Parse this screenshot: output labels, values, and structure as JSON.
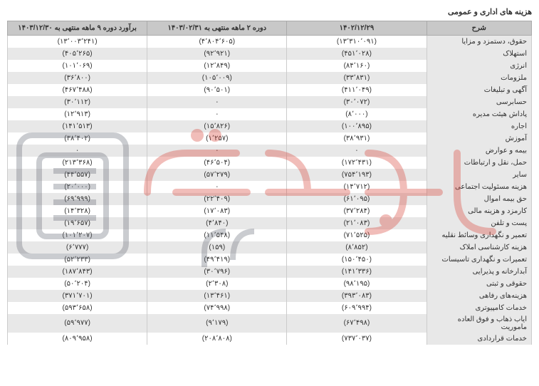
{
  "title": "هزینه های اداری و عمومی",
  "headers": {
    "desc": "شرح",
    "col1": "۱۴۰۲/۱۲/۲۹",
    "col2": "دوره ۲ ماهه منتهی به ۱۴۰۳/۰۲/۳۱",
    "col3": "برآورد دوره ۹ ماهه منتهی به ۱۴۰۳/۱۲/۳۰"
  },
  "rows": [
    {
      "d": "حقوق، دستمزد و مزایا",
      "v1": "(۱۳٬۳۱۰٬۰۹۱)",
      "v2": "(۴٬۸۰۴٬۶۰۵)",
      "v3": "(۱۳٬۰۰۳٬۲۴۱)"
    },
    {
      "d": "استهلاک",
      "v1": "(۴۵۱٬۰۲۸)",
      "v2": "(۹۲٬۹۲۱)",
      "v3": "(۴۰۵٬۲۶۵)"
    },
    {
      "d": "انرژی",
      "v1": "(۸۴٬۱۶۰)",
      "v2": "(۱۲٬۸۴۹)",
      "v3": "(۱۰۱٬۰۶۹)"
    },
    {
      "d": "ملزومات",
      "v1": "(۳۳٬۸۳۱)",
      "v2": "(۱۰۵٬۰۰۹)",
      "v3": "(۳۶٬۸۰۰)"
    },
    {
      "d": "آگهی و تبلیغات",
      "v1": "(۴۱۱٬۰۴۹)",
      "v2": "(۹۰٬۵۰۱)",
      "v3": "(۴۶۷٬۴۸۸)"
    },
    {
      "d": "حسابرسی",
      "v1": "(۳۰٬۰۷۲)",
      "v2": "۰",
      "v3": "(۳۰٬۱۱۲)"
    },
    {
      "d": "پاداش هیئت مدیره",
      "v1": "(۸٬۰۰۰)",
      "v2": "۰",
      "v3": "(۱۲٬۹۱۳)"
    },
    {
      "d": "اجاره",
      "v1": "(۱۰۰٬۸۹۵)",
      "v2": "(۱۵٬۸۲۶)",
      "v3": "(۱۴۱٬۵۱۳)"
    },
    {
      "d": "آموزش",
      "v1": "(۳۸٬۹۳۱)",
      "v2": "(۱٬۲۵۷)",
      "v3": "(۳۸٬۴۰۲)"
    },
    {
      "d": "بیمه و عوارض",
      "v1": "۰",
      "v2": "۰",
      "v3": "۰"
    },
    {
      "d": "حمل، نقل و ارتباطات",
      "v1": "(۱۷۲٬۴۳۱)",
      "v2": "(۴۶٬۵۰۴)",
      "v3": "(۲۱۳٬۳۶۸)"
    },
    {
      "d": "سایر",
      "v1": "(۷۵۴٬۱۹۳)",
      "v2": "(۵۷٬۲۷۹)",
      "v3": "(۴۴٬۵۵۷)"
    },
    {
      "d": "هزینه مسئولیت اجتماعی",
      "v1": "(۱۴٬۷۱۲)",
      "v2": "۰",
      "v3": "(۲۰٬۰۰۰)"
    },
    {
      "d": "حق بیمه اموال",
      "v1": "(۶۱٬۰۹۵)",
      "v2": "(۲۲٬۴۰۹)",
      "v3": "(۶۹٬۹۹۹)"
    },
    {
      "d": "کارمزد و هزینه مالی",
      "v1": "(۳۷٬۲۸۴)",
      "v2": "(۱۷٬۰۸۳)",
      "v3": "(۱۴٬۳۲۸)"
    },
    {
      "d": "پست و تلفن",
      "v1": "(۲۱٬۰۸۳)",
      "v2": "(۴٬۸۴۰)",
      "v3": "(۱۹٬۶۵۷)"
    },
    {
      "d": "تعمیر و نگهداری وسائط نقلیه",
      "v1": "(۷۱٬۵۲۵)",
      "v2": "(۱۱٬۵۴۸)",
      "v3": "(۱۰۱٬۲۰۷)"
    },
    {
      "d": "هزینه کارشناسی املاک",
      "v1": "(۸٬۸۵۲)",
      "v2": "(۱۵۹)",
      "v3": "(۶٬۷۷۷)"
    },
    {
      "d": "تعمیرات و نگهداری تاسیسات",
      "v1": "(۱۵۰٬۴۵۰)",
      "v2": "(۴۹٬۴۱۹)",
      "v3": "(۵۲٬۲۳۳)"
    },
    {
      "d": "آبدارخانه و پذیرایی",
      "v1": "(۱۴۱٬۳۳۶)",
      "v2": "(۳۰٬۷۹۶)",
      "v3": "(۱۸۷٬۸۴۳)"
    },
    {
      "d": "حقوقی و ثبتی",
      "v1": "(۹۸٬۱۹۵)",
      "v2": "(۲٬۳۰۸)",
      "v3": "(۵۰٬۲۰۴)"
    },
    {
      "d": "هزینه‌های رفاهی",
      "v1": "(۳۹۳٬۰۸۳)",
      "v2": "(۱۳٬۴۶۱)",
      "v3": "(۳۷۱٬۷۰۱)"
    },
    {
      "d": "خدمات کامپیوتری",
      "v1": "(۶۰۹٬۹۹۴)",
      "v2": "(۷۴٬۹۹۸)",
      "v3": "(۵۹۳٬۶۵۸)"
    },
    {
      "d": "ایاب ذهاب و فوق العاده ماموریت",
      "v1": "(۶۷٬۴۹۸)",
      "v2": "(۹٬۱۷۹)",
      "v3": "(۵۹٬۹۷۷)"
    },
    {
      "d": "خدمات قراردادی",
      "v1": "(۷۳۷٬۰۳۷)",
      "v2": "(۲۰۸٬۸۰۸)",
      "v3": "(۸۰۹٬۹۵۸)"
    }
  ],
  "style": {
    "header_bg": "#c8c8c8",
    "label_bg": "#e8e8e8",
    "even_bg": "#ffffff",
    "odd_bg": "#e8e8e8",
    "border": "#cccccc",
    "text": "#333333",
    "font_size": 10,
    "watermark": {
      "red": "#d9453a",
      "gray": "#6b707a",
      "opacity": 0.35
    }
  }
}
